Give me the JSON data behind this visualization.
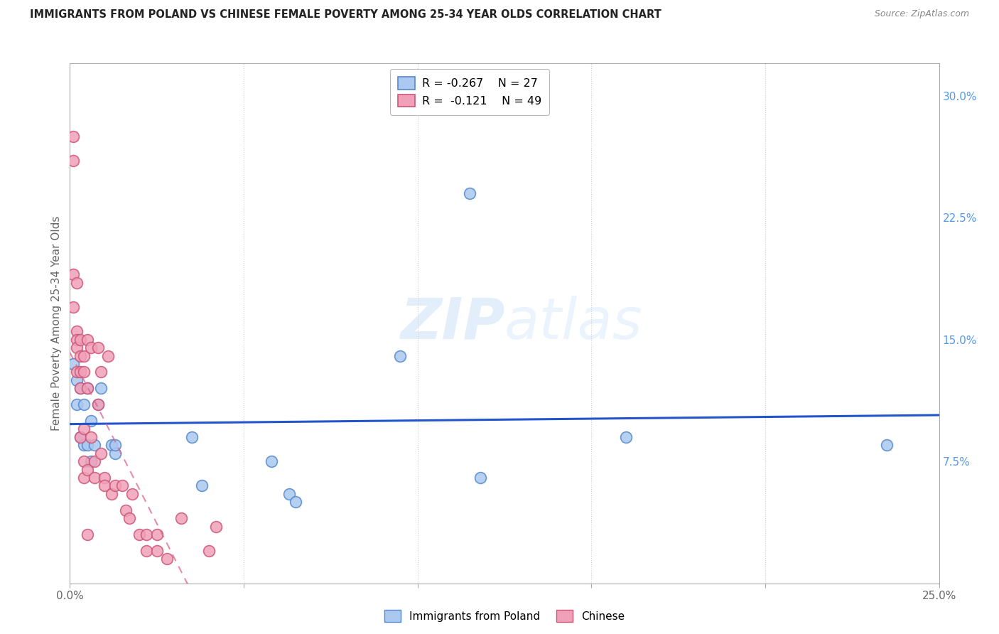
{
  "title": "IMMIGRANTS FROM POLAND VS CHINESE FEMALE POVERTY AMONG 25-34 YEAR OLDS CORRELATION CHART",
  "source": "Source: ZipAtlas.com",
  "ylabel": "Female Poverty Among 25-34 Year Olds",
  "ylabel_right_ticks": [
    "7.5%",
    "15.0%",
    "22.5%",
    "30.0%"
  ],
  "ylabel_right_vals": [
    0.075,
    0.15,
    0.225,
    0.3
  ],
  "xlim": [
    0.0,
    0.25
  ],
  "ylim": [
    0.0,
    0.32
  ],
  "legend_blue_r": "-0.267",
  "legend_blue_n": "27",
  "legend_pink_r": "-0.121",
  "legend_pink_n": "49",
  "legend_blue_label": "Immigrants from Poland",
  "legend_pink_label": "Chinese",
  "watermark_zip": "ZIP",
  "watermark_atlas": "atlas",
  "blue_color": "#aac8f0",
  "blue_edge": "#5588cc",
  "pink_color": "#f0a0b8",
  "pink_edge": "#cc5577",
  "blue_line_color": "#2255cc",
  "pink_line_color": "#dd6688",
  "poland_x": [
    0.001,
    0.002,
    0.002,
    0.003,
    0.003,
    0.004,
    0.004,
    0.005,
    0.005,
    0.006,
    0.006,
    0.007,
    0.008,
    0.009,
    0.012,
    0.013,
    0.013,
    0.035,
    0.038,
    0.058,
    0.063,
    0.065,
    0.095,
    0.115,
    0.118,
    0.16,
    0.235
  ],
  "poland_y": [
    0.135,
    0.125,
    0.11,
    0.12,
    0.09,
    0.11,
    0.085,
    0.12,
    0.085,
    0.1,
    0.075,
    0.085,
    0.11,
    0.12,
    0.085,
    0.08,
    0.085,
    0.09,
    0.06,
    0.075,
    0.055,
    0.05,
    0.14,
    0.24,
    0.065,
    0.09,
    0.085
  ],
  "chinese_x": [
    0.001,
    0.001,
    0.001,
    0.001,
    0.002,
    0.002,
    0.002,
    0.002,
    0.002,
    0.003,
    0.003,
    0.003,
    0.003,
    0.003,
    0.004,
    0.004,
    0.004,
    0.004,
    0.004,
    0.005,
    0.005,
    0.005,
    0.006,
    0.006,
    0.007,
    0.007,
    0.008,
    0.008,
    0.009,
    0.009,
    0.01,
    0.01,
    0.011,
    0.012,
    0.013,
    0.015,
    0.016,
    0.017,
    0.018,
    0.02,
    0.022,
    0.022,
    0.025,
    0.025,
    0.028,
    0.032,
    0.04,
    0.042,
    0.005
  ],
  "chinese_y": [
    0.275,
    0.26,
    0.19,
    0.17,
    0.185,
    0.155,
    0.15,
    0.145,
    0.13,
    0.15,
    0.14,
    0.13,
    0.12,
    0.09,
    0.14,
    0.13,
    0.095,
    0.075,
    0.065,
    0.15,
    0.12,
    0.07,
    0.145,
    0.09,
    0.075,
    0.065,
    0.145,
    0.11,
    0.13,
    0.08,
    0.065,
    0.06,
    0.14,
    0.055,
    0.06,
    0.06,
    0.045,
    0.04,
    0.055,
    0.03,
    0.03,
    0.02,
    0.03,
    0.02,
    0.015,
    0.04,
    0.02,
    0.035,
    0.03
  ]
}
